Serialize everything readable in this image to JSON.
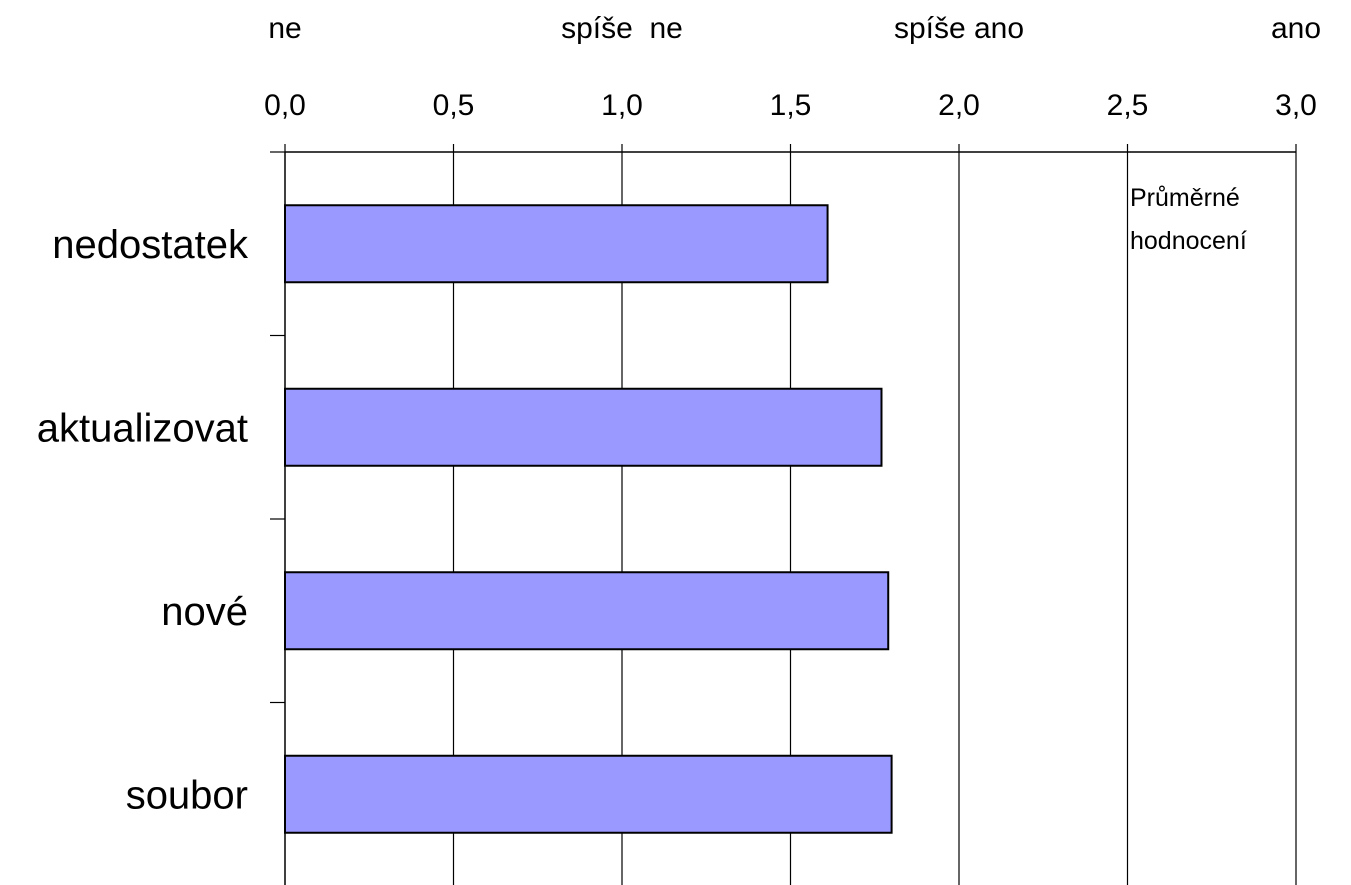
{
  "chart_data": {
    "type": "bar",
    "orientation": "horizontal",
    "categories": [
      "nedostatek",
      "aktualizovat",
      "nové",
      "soubor"
    ],
    "values": [
      1.61,
      1.77,
      1.79,
      1.8
    ],
    "xlim": [
      0,
      3
    ],
    "x_ticks": [
      "0,0",
      "0,5",
      "1,0",
      "1,5",
      "2,0",
      "2,5",
      "3,0"
    ],
    "scale_labels": [
      {
        "text": "ne",
        "value": 0
      },
      {
        "text": "spíše  ne",
        "value": 1
      },
      {
        "text": "spíše ano",
        "value": 2
      },
      {
        "text": "ano",
        "value": 3
      }
    ],
    "annotation": [
      "Průměrné",
      "hodnocení"
    ],
    "axis_position": "top",
    "grid": true,
    "bar_color": "#9999ff",
    "bar_border_color": "#000000"
  }
}
